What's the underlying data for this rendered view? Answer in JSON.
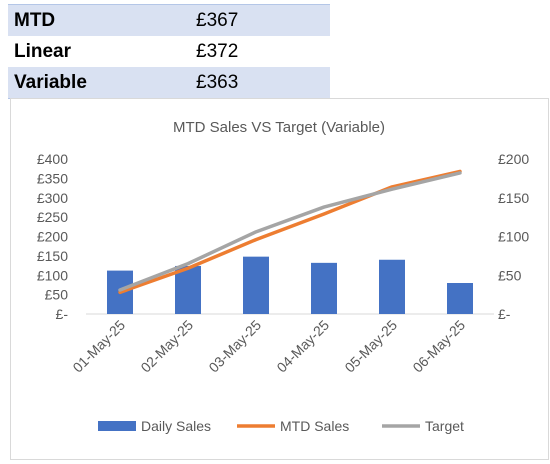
{
  "summary": {
    "rows": [
      {
        "label": "MTD",
        "value": "£367"
      },
      {
        "label": "Linear",
        "value": "£372"
      },
      {
        "label": "Variable",
        "value": "£363"
      }
    ]
  },
  "chart_data": {
    "type": "bar",
    "title": "MTD Sales VS Target (Variable)",
    "categories": [
      "01-May-25",
      "02-May-25",
      "03-May-25",
      "04-May-25",
      "05-May-25",
      "06-May-25"
    ],
    "series": [
      {
        "name": "Daily Sales",
        "type": "bar",
        "axis": "secondary",
        "color": "#4472c4",
        "values": [
          56,
          62,
          74,
          66,
          70,
          40
        ]
      },
      {
        "name": "MTD Sales",
        "type": "line",
        "axis": "primary",
        "color": "#ed7d31",
        "values": [
          56,
          118,
          192,
          258,
          328,
          368
        ]
      },
      {
        "name": "Target",
        "type": "line",
        "axis": "primary",
        "color": "#a5a5a5",
        "values": [
          62,
          130,
          212,
          276,
          322,
          364
        ]
      }
    ],
    "y_primary": {
      "min": 0,
      "max": 400,
      "step": 50,
      "tick_labels": [
        "£-",
        "£50",
        "£100",
        "£150",
        "£200",
        "£250",
        "£300",
        "£350",
        "£400"
      ]
    },
    "y_secondary": {
      "min": 0,
      "max": 200,
      "step": 50,
      "tick_labels": [
        "£-",
        "£50",
        "£100",
        "£150",
        "£200"
      ]
    },
    "grid": false,
    "legend_position": "bottom"
  }
}
